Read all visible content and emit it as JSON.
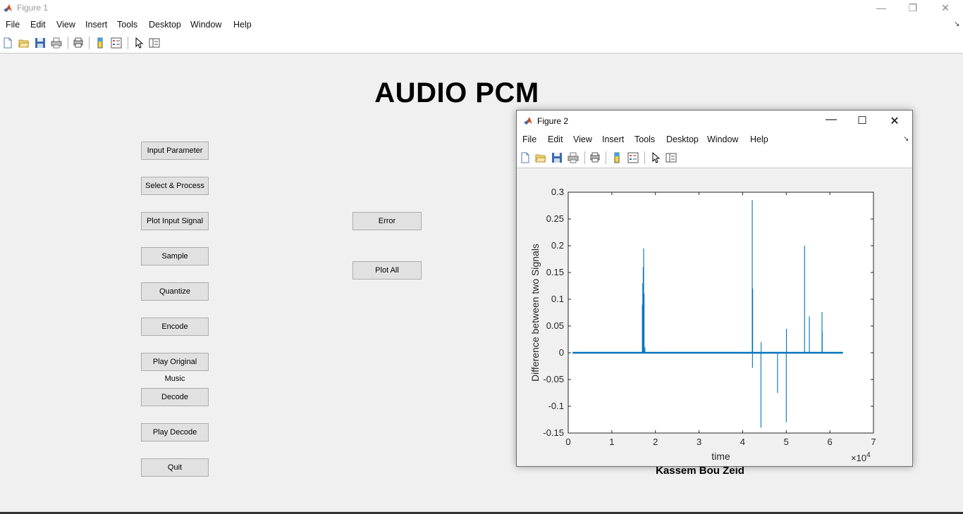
{
  "figure1": {
    "title": "Figure 1",
    "menu": [
      "File",
      "Edit",
      "View",
      "Insert",
      "Tools",
      "Desktop",
      "Window",
      "Help"
    ],
    "gui_title": "AUDIO PCM",
    "buttons_left": [
      "Input Parameter",
      "Select & Process",
      "Plot Input Signal",
      "Sample",
      "Quantize",
      "Encode",
      "Play Original Music",
      "Decode",
      "Play Decode",
      "Quit"
    ],
    "buttons_right": [
      "Error",
      "Plot All"
    ],
    "author": "Kassem Bou Zeid"
  },
  "figure2": {
    "title": "Figure 2",
    "menu": [
      "File",
      "Edit",
      "View",
      "Insert",
      "Tools",
      "Desktop",
      "Window",
      "Help"
    ]
  },
  "toolbar_icons": [
    "new-figure-icon",
    "open-file-icon",
    "save-icon",
    "print-icon",
    "print-preview-icon",
    "colorbar-icon",
    "legend-icon",
    "pointer-icon",
    "property-editor-icon"
  ],
  "chart_data": {
    "type": "line",
    "xlabel": "time",
    "ylabel": "Difference between two Signals",
    "x_exponent_label": "×10",
    "x_exponent": "4",
    "xlim": [
      0,
      70000
    ],
    "ylim": [
      -0.15,
      0.3
    ],
    "xticks": [
      0,
      1,
      2,
      3,
      4,
      5,
      6,
      7
    ],
    "yticks": [
      "-0.15",
      "-0.1",
      "-0.05",
      "0",
      "0.05",
      "0.1",
      "0.15",
      "0.2",
      "0.25",
      "0.3"
    ],
    "line_color": "#0072bd",
    "baseline": {
      "x_start": 1000,
      "x_end": 63000,
      "y": 0
    },
    "spikes": [
      {
        "x": 17000,
        "y": 0.09
      },
      {
        "x": 17100,
        "y": 0.13
      },
      {
        "x": 17200,
        "y": 0.16
      },
      {
        "x": 17300,
        "y": 0.195
      },
      {
        "x": 17400,
        "y": 0.11
      },
      {
        "x": 17600,
        "y": 0.01
      },
      {
        "x": 42200,
        "y": 0.285
      },
      {
        "x": 42250,
        "y": -0.028
      },
      {
        "x": 42300,
        "y": 0.12
      },
      {
        "x": 44200,
        "y": -0.14
      },
      {
        "x": 44250,
        "y": 0.02
      },
      {
        "x": 48000,
        "y": -0.075
      },
      {
        "x": 50000,
        "y": -0.13
      },
      {
        "x": 50050,
        "y": 0.045
      },
      {
        "x": 54200,
        "y": 0.2
      },
      {
        "x": 55300,
        "y": 0.068
      },
      {
        "x": 58200,
        "y": 0.076
      },
      {
        "x": 58250,
        "y": 0.04
      }
    ]
  }
}
